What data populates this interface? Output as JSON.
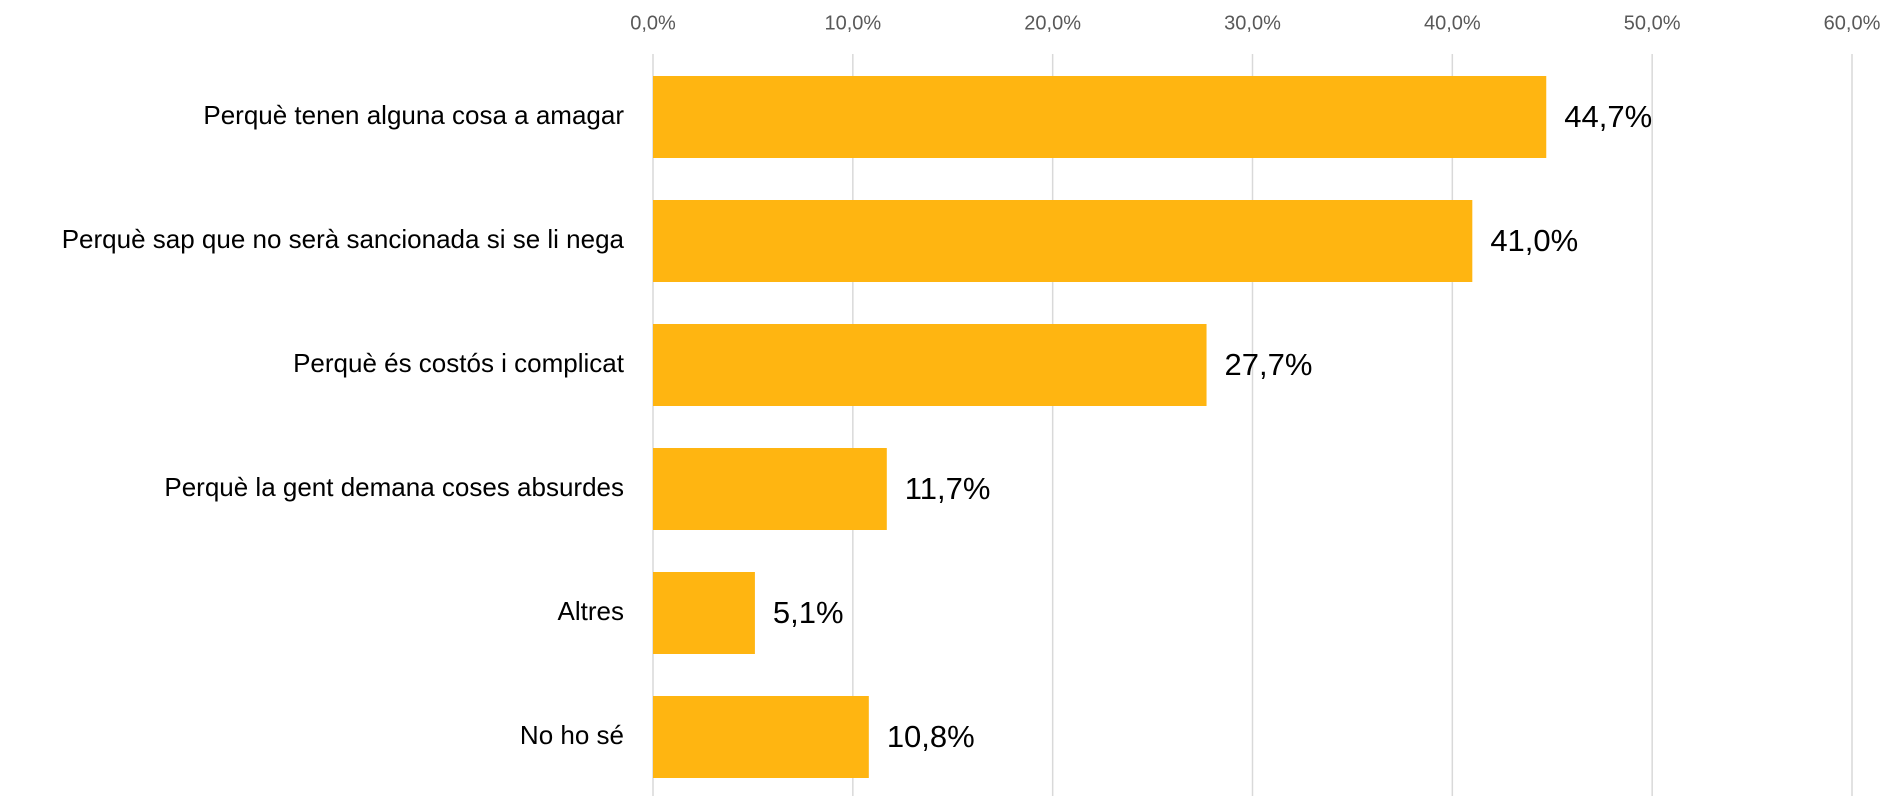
{
  "chart_data": {
    "type": "bar",
    "orientation": "horizontal",
    "categories": [
      "Perquè tenen alguna cosa a amagar",
      "Perquè sap que no serà sancionada si se li nega",
      "Perquè és costós i complicat",
      "Perquè la gent demana coses absurdes",
      "Altres",
      "No ho sé"
    ],
    "values": [
      44.7,
      41.0,
      27.7,
      11.7,
      5.1,
      10.8
    ],
    "value_labels": [
      "44,7%",
      "41,0%",
      "27,7%",
      "11,7%",
      "5,1%",
      "10,8%"
    ],
    "color": "#ffb511",
    "xlim": [
      0,
      60
    ],
    "xticks": [
      {
        "value": 0,
        "label": "0,0%"
      },
      {
        "value": 10,
        "label": "10,0%"
      },
      {
        "value": 20,
        "label": "20,0%"
      },
      {
        "value": 30,
        "label": "30,0%"
      },
      {
        "value": 40,
        "label": "40,0%"
      },
      {
        "value": 50,
        "label": "50,0%"
      },
      {
        "value": 60,
        "label": "60,0%"
      }
    ],
    "grid": true
  }
}
